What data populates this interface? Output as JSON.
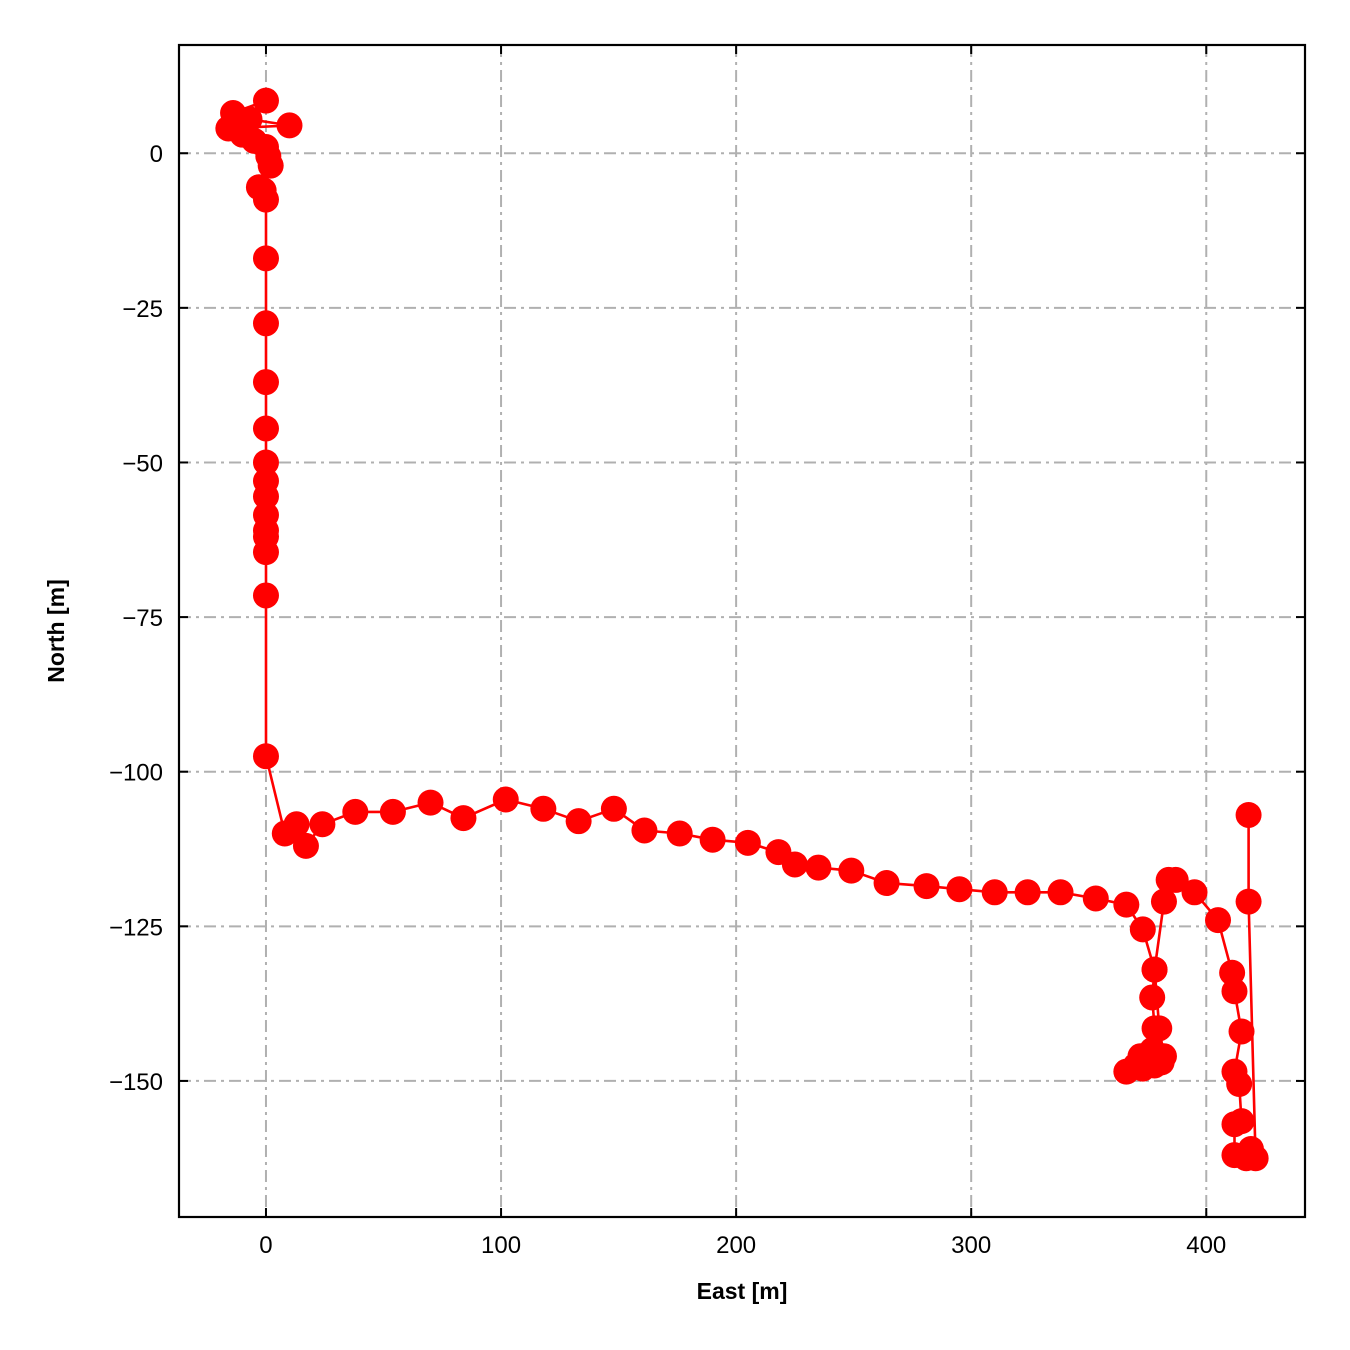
{
  "chart_data": {
    "type": "line",
    "xlabel": "East [m]",
    "ylabel": "North [m]",
    "xlim": [
      -37,
      442
    ],
    "ylim": [
      -172,
      17.5
    ],
    "grid": true,
    "grid_style": "dash-dot",
    "x_ticks": [
      0,
      100,
      200,
      300,
      400
    ],
    "y_ticks": [
      0,
      -25,
      -50,
      -75,
      -100,
      -125,
      -150
    ],
    "x_tick_labels": [
      "0",
      "100",
      "200",
      "300",
      "400"
    ],
    "y_tick_labels": [
      "0",
      "−25",
      "−50",
      "−75",
      "−100",
      "−125",
      "−150"
    ],
    "series": [
      {
        "color": "#ff0000",
        "marker": "circle",
        "points": [
          [
            0,
            8.5
          ],
          [
            -14,
            6.5
          ],
          [
            -7,
            5.5
          ],
          [
            10,
            4.5
          ],
          [
            -16,
            4
          ],
          [
            -10,
            3
          ],
          [
            -5,
            2
          ],
          [
            0,
            1
          ],
          [
            1,
            -0.5
          ],
          [
            2,
            -2
          ],
          [
            -3,
            -5.5
          ],
          [
            -1,
            -6
          ],
          [
            0,
            -7.5
          ],
          [
            0,
            -17
          ],
          [
            0,
            -27.5
          ],
          [
            0,
            -37
          ],
          [
            0,
            -44.5
          ],
          [
            0,
            -50
          ],
          [
            0,
            -53
          ],
          [
            0,
            -55.5
          ],
          [
            0,
            -58.5
          ],
          [
            0,
            -61
          ],
          [
            0,
            -62
          ],
          [
            0,
            -64.5
          ],
          [
            0,
            -71.5
          ],
          [
            0,
            -97.5
          ],
          [
            8,
            -110
          ],
          [
            13,
            -108.5
          ],
          [
            17,
            -112
          ],
          [
            24,
            -108.5
          ],
          [
            38,
            -106.5
          ],
          [
            54,
            -106.5
          ],
          [
            70,
            -105
          ],
          [
            84,
            -107.5
          ],
          [
            102,
            -104.5
          ],
          [
            118,
            -106
          ],
          [
            133,
            -108
          ],
          [
            148,
            -106
          ],
          [
            161,
            -109.5
          ],
          [
            176,
            -110
          ],
          [
            190,
            -111
          ],
          [
            205,
            -111.5
          ],
          [
            218,
            -113
          ],
          [
            225,
            -115
          ],
          [
            235,
            -115.5
          ],
          [
            249,
            -116
          ],
          [
            264,
            -118
          ],
          [
            281,
            -118.5
          ],
          [
            295,
            -119
          ],
          [
            310,
            -119.5
          ],
          [
            324,
            -119.5
          ],
          [
            338,
            -119.5
          ],
          [
            353,
            -120.5
          ],
          [
            366,
            -121.5
          ],
          [
            373,
            -125.5
          ],
          [
            378,
            -132
          ],
          [
            377,
            -136.5
          ],
          [
            378,
            -141.5
          ],
          [
            377,
            -145
          ],
          [
            372,
            -146
          ],
          [
            370,
            -147.5
          ],
          [
            366,
            -148.5
          ],
          [
            373,
            -148
          ],
          [
            378,
            -147.5
          ],
          [
            381,
            -147
          ],
          [
            382,
            -146
          ],
          [
            380,
            -141.5
          ],
          [
            378,
            -132
          ],
          [
            382,
            -121
          ],
          [
            384,
            -117.5
          ],
          [
            387,
            -117.5
          ],
          [
            395,
            -119.5
          ],
          [
            405,
            -124
          ],
          [
            411,
            -132.5
          ],
          [
            412,
            -135.5
          ],
          [
            415,
            -142
          ],
          [
            412,
            -148.5
          ],
          [
            414,
            -150.5
          ],
          [
            415,
            -156.5
          ],
          [
            412,
            -157
          ],
          [
            412,
            -162
          ],
          [
            417,
            -162.5
          ],
          [
            419,
            -161
          ],
          [
            421,
            -162.5
          ],
          [
            418,
            -121
          ],
          [
            418,
            -107
          ]
        ]
      }
    ]
  }
}
